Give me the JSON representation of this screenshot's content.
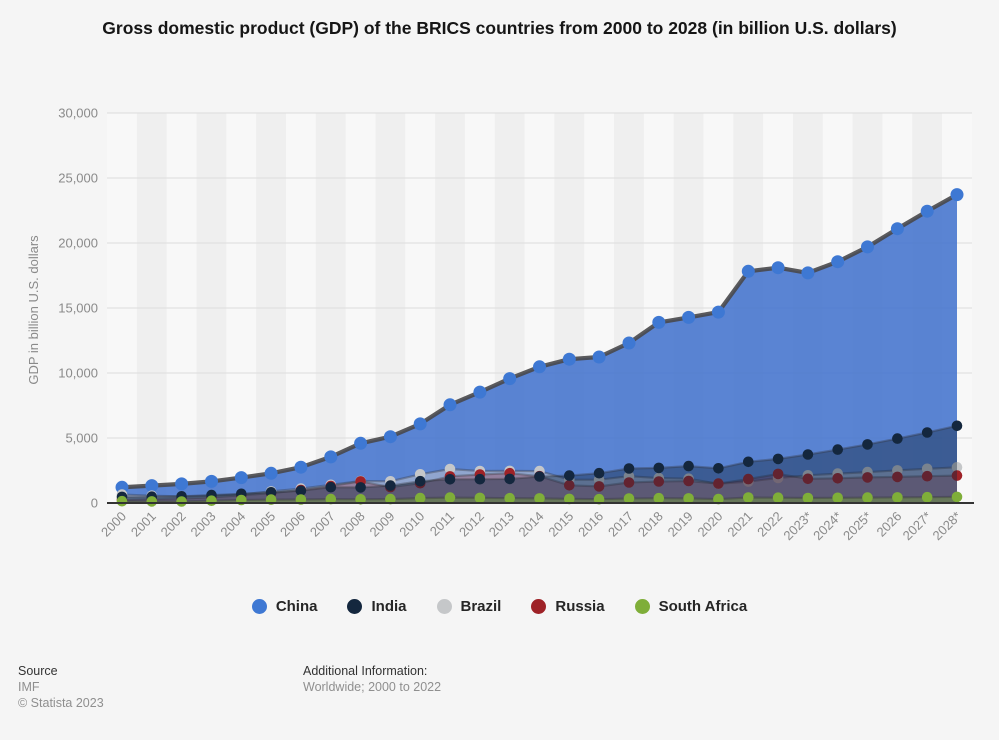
{
  "title": "Gross domestic product (GDP) of the BRICS countries from 2000 to 2028 (in billion U.S. dollars)",
  "chart_data": {
    "type": "area",
    "title": "Gross domestic product (GDP) of the BRICS countries from 2000 to 2028 (in billion U.S. dollars)",
    "xlabel": "",
    "ylabel": "GDP in billion U.S. dollars",
    "ylim": [
      0,
      30000
    ],
    "ytick_step": 5000,
    "ytick_labels": [
      "0",
      "5,000",
      "10,000",
      "15,000",
      "20,000",
      "25,000",
      "30,000"
    ],
    "grid": true,
    "legend_position": "bottom",
    "categories": [
      "2000",
      "2001",
      "2002",
      "2003",
      "2004",
      "2005",
      "2006",
      "2007",
      "2008",
      "2009",
      "2010",
      "2011",
      "2012",
      "2013",
      "2014",
      "2015",
      "2016",
      "2017",
      "2018",
      "2019",
      "2020",
      "2021",
      "2022",
      "2023*",
      "2024*",
      "2025*",
      "2026",
      "2027*",
      "2028*"
    ],
    "series": [
      {
        "name": "China",
        "color": "#3e78d3",
        "fill": "rgba(62,112,205,0.85)",
        "values": [
          1211,
          1339,
          1471,
          1660,
          1955,
          2286,
          2752,
          3550,
          4594,
          5102,
          6087,
          7552,
          8532,
          9570,
          10476,
          11062,
          11233,
          12310,
          13895,
          14280,
          14688,
          17820,
          18100,
          17700,
          18560,
          19700,
          21100,
          22450,
          23720
        ]
      },
      {
        "name": "India",
        "color": "#14273e",
        "fill": "rgba(18,38,62,0.42)",
        "values": [
          468,
          485,
          515,
          607,
          709,
          820,
          940,
          1217,
          1199,
          1342,
          1676,
          1823,
          1828,
          1857,
          2039,
          2104,
          2295,
          2651,
          2703,
          2836,
          2672,
          3167,
          3390,
          3730,
          4110,
          4510,
          4950,
          5420,
          5940
        ]
      },
      {
        "name": "Brazil",
        "color": "#c5c7c9",
        "fill": "rgba(200,200,202,0.5)",
        "values": [
          655,
          560,
          510,
          558,
          669,
          891,
          1107,
          1397,
          1695,
          1667,
          2208,
          2616,
          2465,
          2472,
          2456,
          1802,
          1795,
          2063,
          1916,
          1873,
          1476,
          1649,
          1920,
          2130,
          2265,
          2380,
          2505,
          2630,
          2750
        ]
      },
      {
        "name": "Russia",
        "color": "#9e2227",
        "fill": "rgba(150,30,35,0.28)",
        "values": [
          260,
          307,
          345,
          430,
          591,
          764,
          990,
          1300,
          1661,
          1223,
          1525,
          2046,
          2192,
          2292,
          2059,
          1363,
          1277,
          1574,
          1657,
          1693,
          1489,
          1837,
          2240,
          1860,
          1900,
          1970,
          2010,
          2060,
          2110
        ]
      },
      {
        "name": "South Africa",
        "color": "#7fae39",
        "fill": "rgba(120,165,50,0.4)",
        "values": [
          136,
          122,
          115,
          175,
          229,
          258,
          272,
          299,
          287,
          297,
          375,
          417,
          396,
          367,
          351,
          317,
          296,
          349,
          368,
          351,
          302,
          420,
          406,
          381,
          400,
          417,
          432,
          448,
          468
        ]
      }
    ]
  },
  "footer": {
    "source_label": "Source",
    "source_value": "IMF",
    "copyright": "© Statista 2023",
    "additional_label": "Additional Information:",
    "additional_value": "Worldwide; 2000 to 2022"
  }
}
